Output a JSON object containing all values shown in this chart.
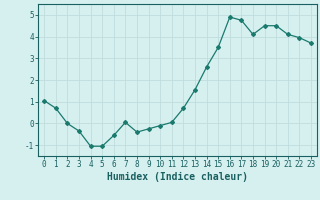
{
  "x": [
    0,
    1,
    2,
    3,
    4,
    5,
    6,
    7,
    8,
    9,
    10,
    11,
    12,
    13,
    14,
    15,
    16,
    17,
    18,
    19,
    20,
    21,
    22,
    23
  ],
  "y": [
    1.05,
    0.7,
    0.0,
    -0.35,
    -1.05,
    -1.05,
    -0.55,
    0.05,
    -0.4,
    -0.25,
    -0.1,
    0.05,
    0.7,
    1.55,
    2.6,
    3.5,
    4.9,
    4.75,
    4.1,
    4.5,
    4.5,
    4.1,
    3.95,
    3.7
  ],
  "line_color": "#1a7a6e",
  "marker": "D",
  "markersize": 2,
  "bg_color": "#d6f0f0",
  "grid_color": "#c0dcdc",
  "xlabel": "Humidex (Indice chaleur)",
  "ylabel": "",
  "title": "",
  "xlim": [
    -0.5,
    23.5
  ],
  "ylim": [
    -1.5,
    5.5
  ],
  "xticks": [
    0,
    1,
    2,
    3,
    4,
    5,
    6,
    7,
    8,
    9,
    10,
    11,
    12,
    13,
    14,
    15,
    16,
    17,
    18,
    19,
    20,
    21,
    22,
    23
  ],
  "yticks": [
    -1,
    0,
    1,
    2,
    3,
    4,
    5
  ],
  "tick_fontsize": 5.5,
  "xlabel_fontsize": 7,
  "axis_color": "#1a6060"
}
